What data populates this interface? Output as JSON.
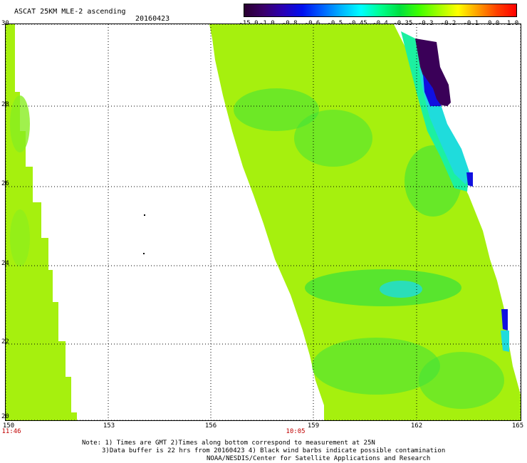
{
  "header": {
    "title": "ASCAT 25KM MLE-2 ascending",
    "date": "20160423"
  },
  "colorbar": {
    "ticks": [
      "-15.0",
      "-1.0",
      "-0.8",
      "-0.6",
      "-0.5",
      "-0.45",
      "-0.4",
      "-0.35",
      "-0.3",
      "-0.2",
      "-0.1",
      "0.0",
      "1.0"
    ],
    "colors": [
      "#2a0030",
      "#3a006a",
      "#2a00b4",
      "#0010f0",
      "#0060ff",
      "#00b4ff",
      "#00ffff",
      "#00ff90",
      "#00e040",
      "#40ff00",
      "#a0ff00",
      "#ffff00",
      "#ffa000",
      "#ff4000",
      "#ff0000"
    ]
  },
  "map": {
    "lat_labels": [
      "30",
      "28",
      "26",
      "24",
      "22",
      "20"
    ],
    "lon_labels": [
      "150",
      "153",
      "156",
      "159",
      "162",
      "165"
    ],
    "times": [
      "11:46",
      "10:05"
    ],
    "lat_range": [
      20,
      30
    ],
    "lon_range": [
      150,
      165
    ],
    "field_colors": {
      "base": "#a6f00e",
      "light": "#88ee20",
      "green": "#3ee23a",
      "cyan_green": "#1cf0a0",
      "cyan": "#1fdcdc",
      "blue": "#1010e0",
      "dark_purple": "#3a0058"
    }
  },
  "notes": {
    "line1": "Note: 1) Times are GMT 2)Times along bottom correspond to measurement at 25N",
    "line2": "3)Data buffer is 22 hrs from 20160423 4) Black wind barbs indicate possible contamination",
    "line3": "NOAA/NESDIS/Center for Satellite Applications and Research"
  }
}
